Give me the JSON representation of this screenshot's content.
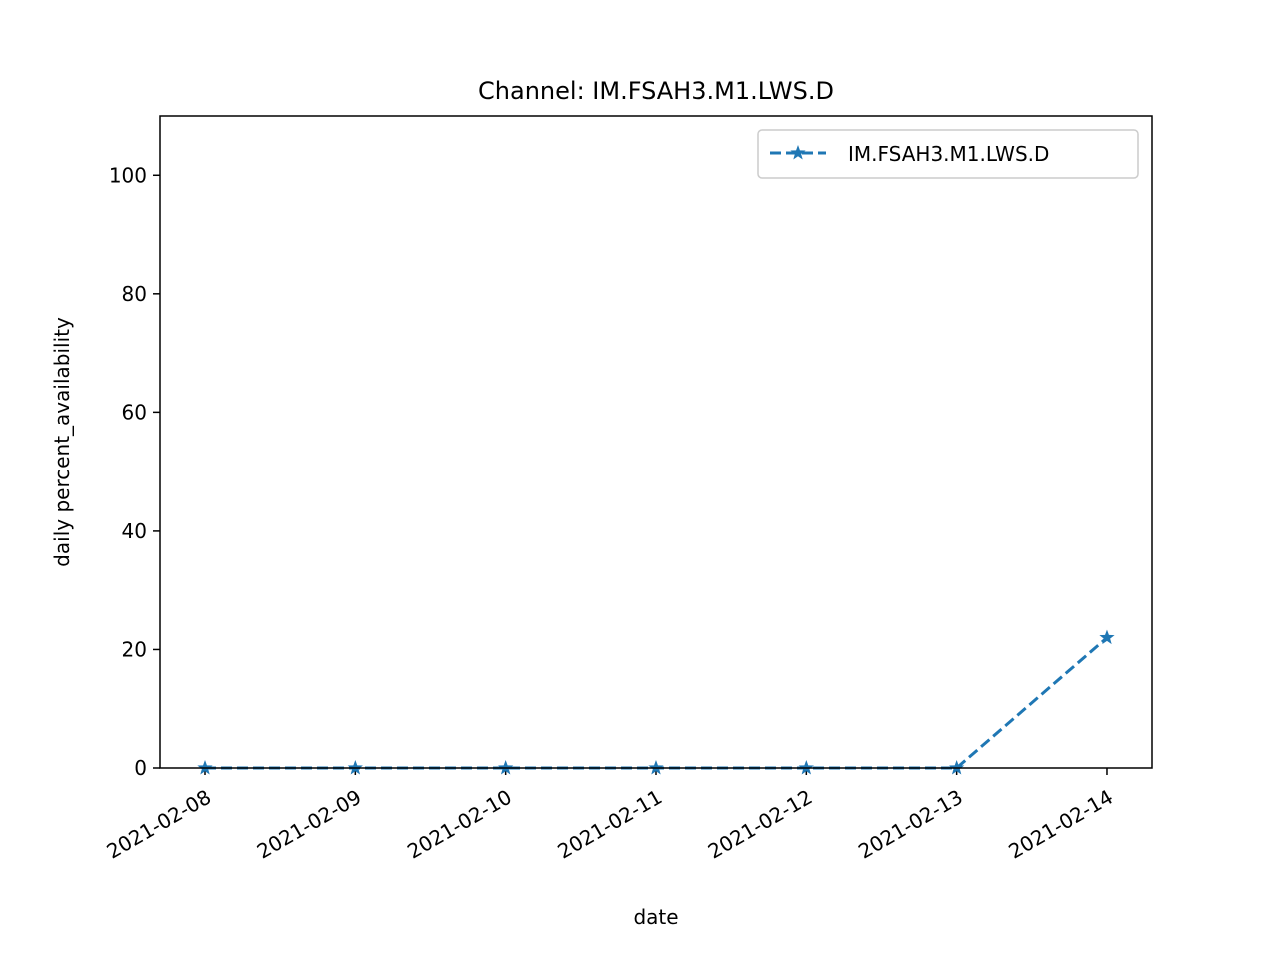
{
  "chart_data": {
    "type": "line",
    "title": "Channel: IM.FSAH3.M1.LWS.D",
    "xlabel": "date",
    "ylabel": "daily percent_availability",
    "x": [
      "2021-02-08",
      "2021-02-09",
      "2021-02-10",
      "2021-02-11",
      "2021-02-12",
      "2021-02-13",
      "2021-02-14"
    ],
    "series": [
      {
        "name": "IM.FSAH3.M1.LWS.D",
        "values": [
          0,
          0,
          0,
          0,
          0,
          0,
          22
        ],
        "color": "#1f77b4",
        "line_style": "dashed",
        "marker": "star"
      }
    ],
    "ylim": [
      0,
      110
    ],
    "yticks": [
      0,
      20,
      40,
      60,
      80,
      100
    ],
    "grid": false,
    "legend_position": "top-right"
  }
}
